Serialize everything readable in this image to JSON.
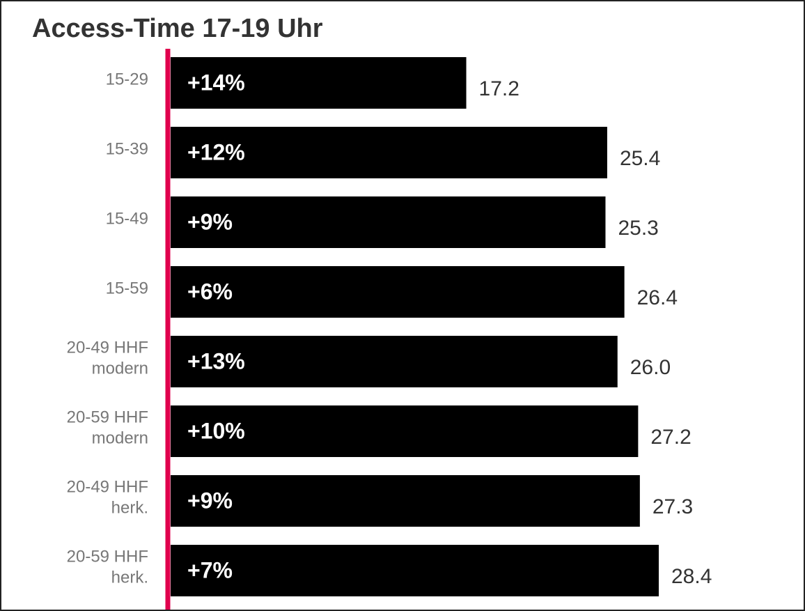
{
  "chart_data": {
    "type": "bar",
    "orientation": "horizontal",
    "title": "Access-Time 17-19 Uhr",
    "categories": [
      [
        "15-29"
      ],
      [
        "15-39"
      ],
      [
        "15-49"
      ],
      [
        "15-59"
      ],
      [
        "20-49 HHF",
        "modern"
      ],
      [
        "20-59 HHF",
        "modern"
      ],
      [
        "20-49 HHF",
        "herk."
      ],
      [
        "20-59 HHF",
        "herk."
      ]
    ],
    "values": [
      17.2,
      25.4,
      25.3,
      26.4,
      26.0,
      27.2,
      27.3,
      28.4
    ],
    "bar_labels": [
      "+14%",
      "+12%",
      "+9%",
      "+6%",
      "+13%",
      "+10%",
      "+9%",
      "+7%"
    ],
    "value_labels": [
      "17.2",
      "25.4",
      "25.3",
      "26.4",
      "26.0",
      "27.2",
      "27.3",
      "28.4"
    ],
    "bar_color": "#000000",
    "axis_color": "#e0004d",
    "bar_label_color": "#ffffff",
    "category_label_color": "#777777",
    "value_label_color": "#333333"
  }
}
